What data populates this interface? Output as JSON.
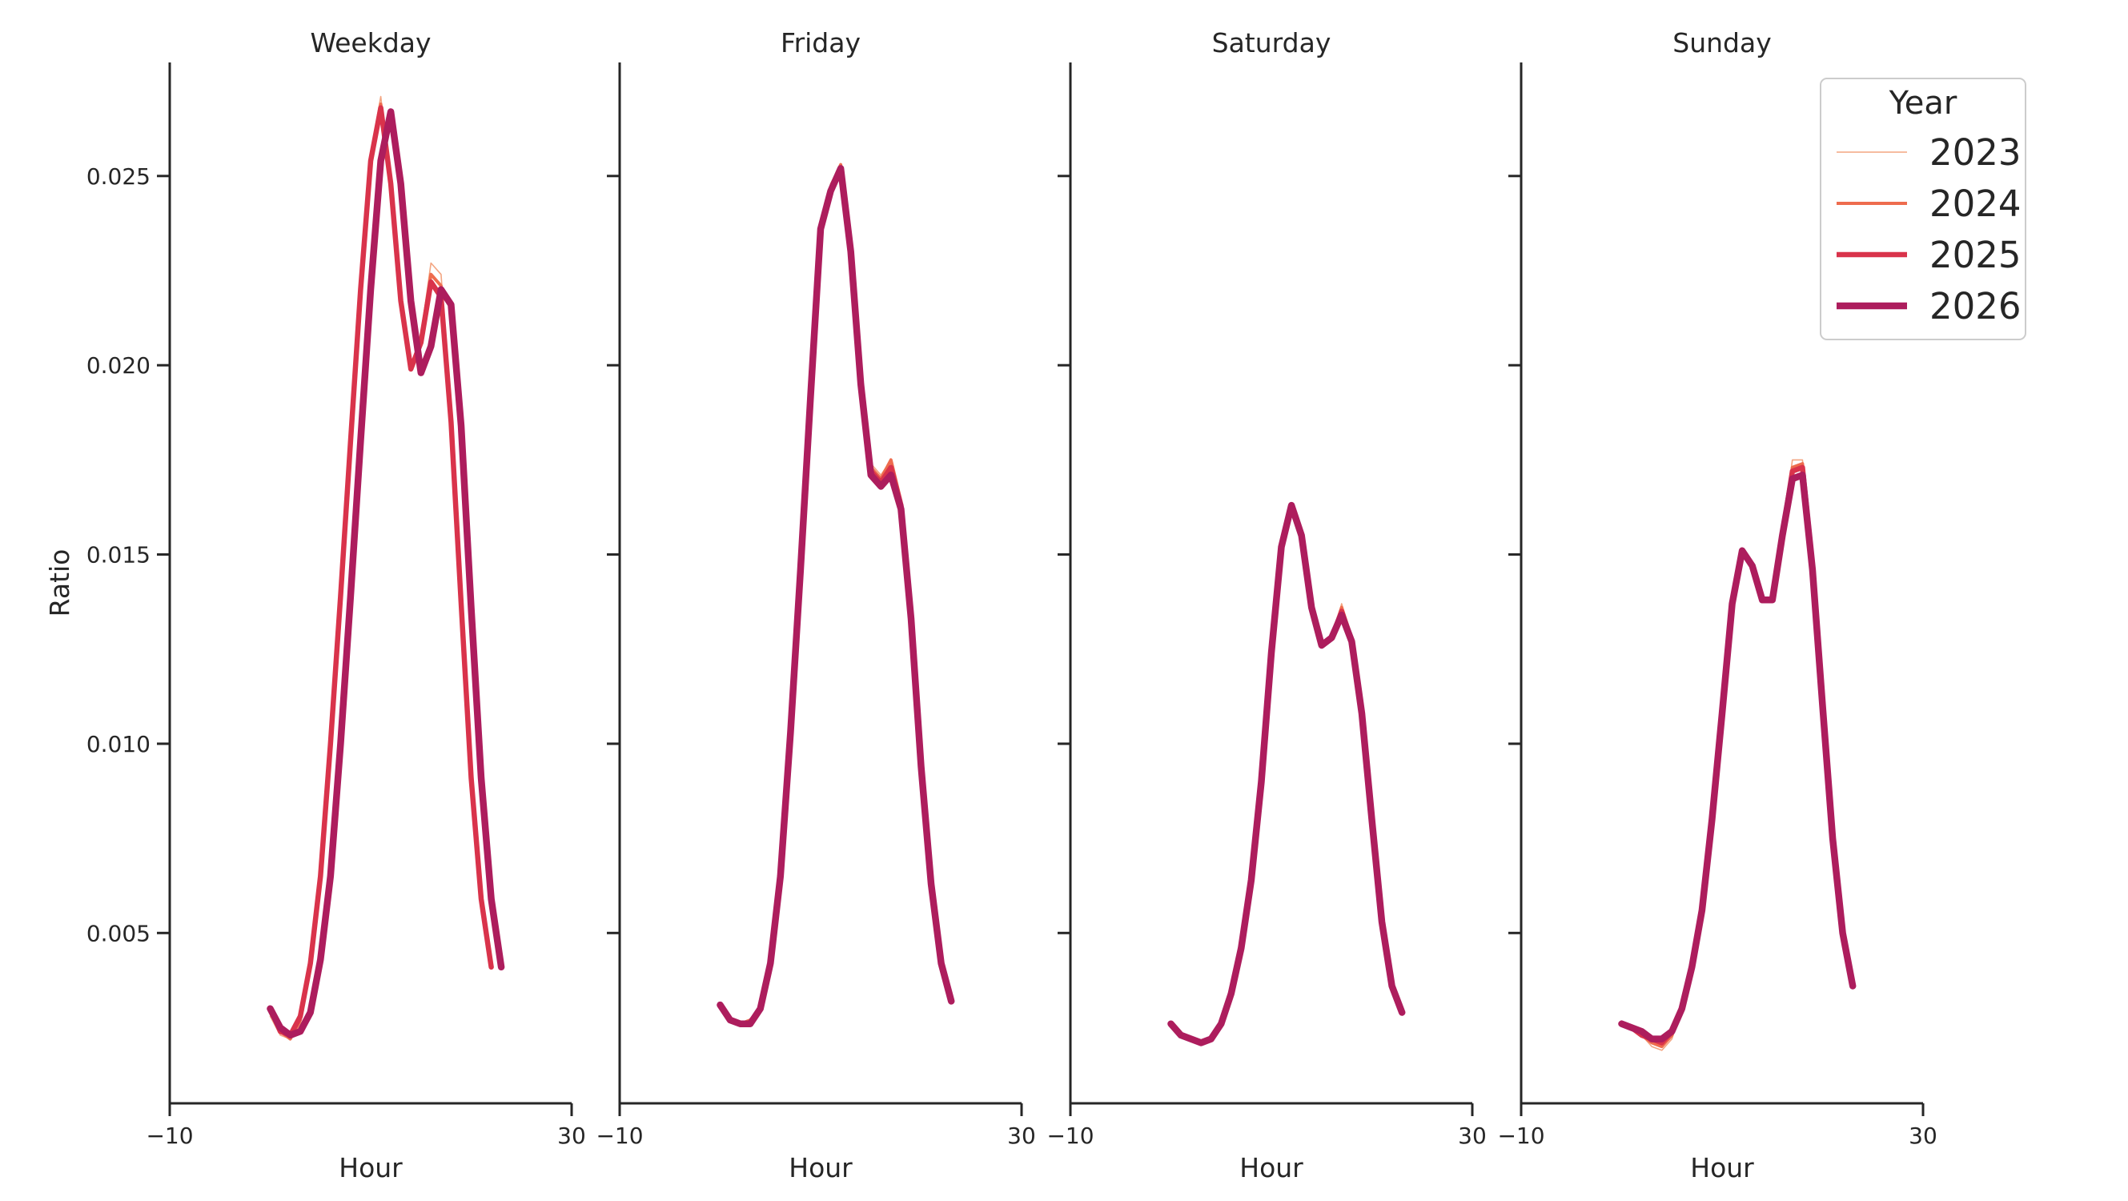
{
  "chart_data": {
    "type": "line",
    "ylabel": "Ratio",
    "xlabel": "Hour",
    "xlim": [
      -10,
      30
    ],
    "ylim": [
      0.0005,
      0.028
    ],
    "xticks": [
      -10,
      30
    ],
    "xtick_labels": [
      "−10",
      "30"
    ],
    "yticks": [
      0.005,
      0.01,
      0.015,
      0.02,
      0.025
    ],
    "ytick_labels": [
      "0.005",
      "0.010",
      "0.015",
      "0.020",
      "0.025"
    ],
    "grid": false,
    "legend": {
      "title": "Year",
      "placement": "top-right",
      "entries": [
        {
          "label": "2023",
          "color": "#f3a581"
        },
        {
          "label": "2024",
          "color": "#ee6c4e"
        },
        {
          "label": "2025",
          "color": "#d9334b"
        },
        {
          "label": "2026",
          "color": "#ad1d5d"
        }
      ]
    },
    "x": [
      0,
      1,
      2,
      3,
      4,
      5,
      6,
      7,
      8,
      9,
      10,
      11,
      12,
      13,
      14,
      15,
      16,
      17,
      18,
      19,
      20,
      21,
      22,
      23
    ],
    "panels": [
      {
        "title": "Weekday",
        "series": [
          {
            "name": "2023",
            "values": [
              0.0028,
              0.0023,
              0.0022,
              0.0026,
              0.0041,
              0.0064,
              0.01,
              0.0139,
              0.018,
              0.0221,
              0.0256,
              0.0271,
              0.0247,
              0.0217,
              0.02,
              0.0208,
              0.0227,
              0.0224,
              0.0188,
              0.014,
              0.0093,
              0.006,
              0.0042,
              null
            ]
          },
          {
            "name": "2024",
            "values": [
              0.0029,
              0.0024,
              0.0022,
              0.0027,
              0.0042,
              0.0065,
              0.01,
              0.0139,
              0.018,
              0.022,
              0.0255,
              0.0269,
              0.0247,
              0.0217,
              0.0199,
              0.0207,
              0.0224,
              0.0221,
              0.0186,
              0.0138,
              0.0092,
              0.006,
              0.0041,
              null
            ]
          },
          {
            "name": "2025",
            "values": [
              0.003,
              0.0024,
              0.0023,
              0.0028,
              0.0042,
              0.0065,
              0.01,
              0.0139,
              0.018,
              0.022,
              0.0254,
              0.0268,
              0.0248,
              0.0217,
              0.0199,
              0.0206,
              0.0222,
              0.0218,
              0.0185,
              0.0137,
              0.0091,
              0.0059,
              0.0041,
              null
            ]
          },
          {
            "name": "2026",
            "values": [
              0.003,
              0.0025,
              0.0023,
              0.0024,
              0.0029,
              0.0043,
              0.0065,
              0.01,
              0.0139,
              0.018,
              0.022,
              0.0254,
              0.0267,
              0.0248,
              0.0217,
              0.0198,
              0.0205,
              0.022,
              0.0216,
              0.0184,
              0.0136,
              0.0091,
              0.0059,
              0.0041
            ]
          }
        ]
      },
      {
        "title": "Friday",
        "series": [
          {
            "name": "2023",
            "values": [
              0.0031,
              0.0027,
              0.0026,
              0.0027,
              0.003,
              0.0042,
              0.0065,
              0.0103,
              0.0146,
              0.0192,
              0.0238,
              0.0248,
              0.0253,
              0.0232,
              0.0196,
              0.0174,
              0.0171,
              0.0175,
              0.0165,
              0.0133,
              0.0095,
              0.0063,
              0.0042,
              0.0032
            ]
          },
          {
            "name": "2024",
            "values": [
              0.0031,
              0.0027,
              0.0026,
              0.0027,
              0.003,
              0.0042,
              0.0065,
              0.0103,
              0.0146,
              0.0192,
              0.0237,
              0.0247,
              0.0253,
              0.0231,
              0.0195,
              0.0173,
              0.017,
              0.0175,
              0.0164,
              0.0133,
              0.0094,
              0.0063,
              0.0042,
              0.0032
            ]
          },
          {
            "name": "2025",
            "values": [
              0.0031,
              0.0027,
              0.0026,
              0.0026,
              0.003,
              0.0042,
              0.0065,
              0.0103,
              0.0146,
              0.0192,
              0.0236,
              0.0246,
              0.0252,
              0.0231,
              0.0195,
              0.0172,
              0.0169,
              0.0173,
              0.0163,
              0.0133,
              0.0094,
              0.0063,
              0.0042,
              0.0032
            ]
          },
          {
            "name": "2026",
            "values": [
              0.0031,
              0.0027,
              0.0026,
              0.0026,
              0.003,
              0.0042,
              0.0065,
              0.0103,
              0.0146,
              0.0192,
              0.0236,
              0.0246,
              0.0252,
              0.023,
              0.0195,
              0.0171,
              0.0168,
              0.0171,
              0.0162,
              0.0133,
              0.0094,
              0.0063,
              0.0042,
              0.0032
            ]
          }
        ]
      },
      {
        "title": "Saturday",
        "series": [
          {
            "name": "2023",
            "values": [
              0.0026,
              0.0023,
              0.0022,
              0.0021,
              0.0022,
              0.0026,
              0.0034,
              0.0046,
              0.0064,
              0.009,
              0.0124,
              0.0152,
              0.0163,
              0.0155,
              0.0136,
              0.0126,
              0.0128,
              0.0137,
              0.0128,
              0.0108,
              0.008,
              0.0053,
              0.0036,
              0.0029
            ]
          },
          {
            "name": "2024",
            "values": [
              0.0026,
              0.0023,
              0.0022,
              0.0021,
              0.0022,
              0.0026,
              0.0034,
              0.0046,
              0.0064,
              0.009,
              0.0124,
              0.0152,
              0.0163,
              0.0155,
              0.0136,
              0.0126,
              0.0128,
              0.0136,
              0.0128,
              0.0108,
              0.008,
              0.0053,
              0.0036,
              0.0029
            ]
          },
          {
            "name": "2025",
            "values": [
              0.0026,
              0.0023,
              0.0022,
              0.0021,
              0.0022,
              0.0026,
              0.0034,
              0.0046,
              0.0064,
              0.009,
              0.0124,
              0.0152,
              0.0163,
              0.0155,
              0.0136,
              0.0126,
              0.0128,
              0.0135,
              0.0127,
              0.0108,
              0.008,
              0.0053,
              0.0036,
              0.0029
            ]
          },
          {
            "name": "2026",
            "values": [
              0.0026,
              0.0023,
              0.0022,
              0.0021,
              0.0022,
              0.0026,
              0.0034,
              0.0046,
              0.0064,
              0.009,
              0.0124,
              0.0152,
              0.0163,
              0.0155,
              0.0136,
              0.0126,
              0.0128,
              0.0134,
              0.0127,
              0.0108,
              0.008,
              0.0053,
              0.0036,
              0.0029
            ]
          }
        ]
      },
      {
        "title": "Sunday",
        "series": [
          {
            "name": "2023",
            "values": [
              0.0026,
              0.0025,
              0.0023,
              0.002,
              0.0019,
              0.0022,
              0.003,
              0.0041,
              0.0056,
              0.008,
              0.0108,
              0.0137,
              0.0151,
              0.0147,
              0.0139,
              0.0138,
              0.0155,
              0.0175,
              0.0175,
              0.0148,
              0.011,
              0.0075,
              0.005,
              0.0036
            ]
          },
          {
            "name": "2024",
            "values": [
              0.0026,
              0.0025,
              0.0023,
              0.0021,
              0.002,
              0.0023,
              0.003,
              0.0041,
              0.0056,
              0.008,
              0.0108,
              0.0137,
              0.0151,
              0.0147,
              0.0138,
              0.0138,
              0.0155,
              0.0173,
              0.0174,
              0.0147,
              0.011,
              0.0075,
              0.005,
              0.0036
            ]
          },
          {
            "name": "2025",
            "values": [
              0.0026,
              0.0025,
              0.0023,
              0.0022,
              0.0021,
              0.0024,
              0.003,
              0.0041,
              0.0056,
              0.008,
              0.0108,
              0.0137,
              0.0151,
              0.0147,
              0.0138,
              0.0138,
              0.0155,
              0.0172,
              0.0173,
              0.0147,
              0.011,
              0.0075,
              0.005,
              0.0036
            ]
          },
          {
            "name": "2026",
            "values": [
              0.0026,
              0.0025,
              0.0024,
              0.0022,
              0.0022,
              0.0024,
              0.003,
              0.0041,
              0.0056,
              0.008,
              0.0108,
              0.0137,
              0.0151,
              0.0147,
              0.0138,
              0.0138,
              0.0155,
              0.017,
              0.0171,
              0.0146,
              0.011,
              0.0075,
              0.005,
              0.0036
            ]
          }
        ]
      }
    ]
  }
}
